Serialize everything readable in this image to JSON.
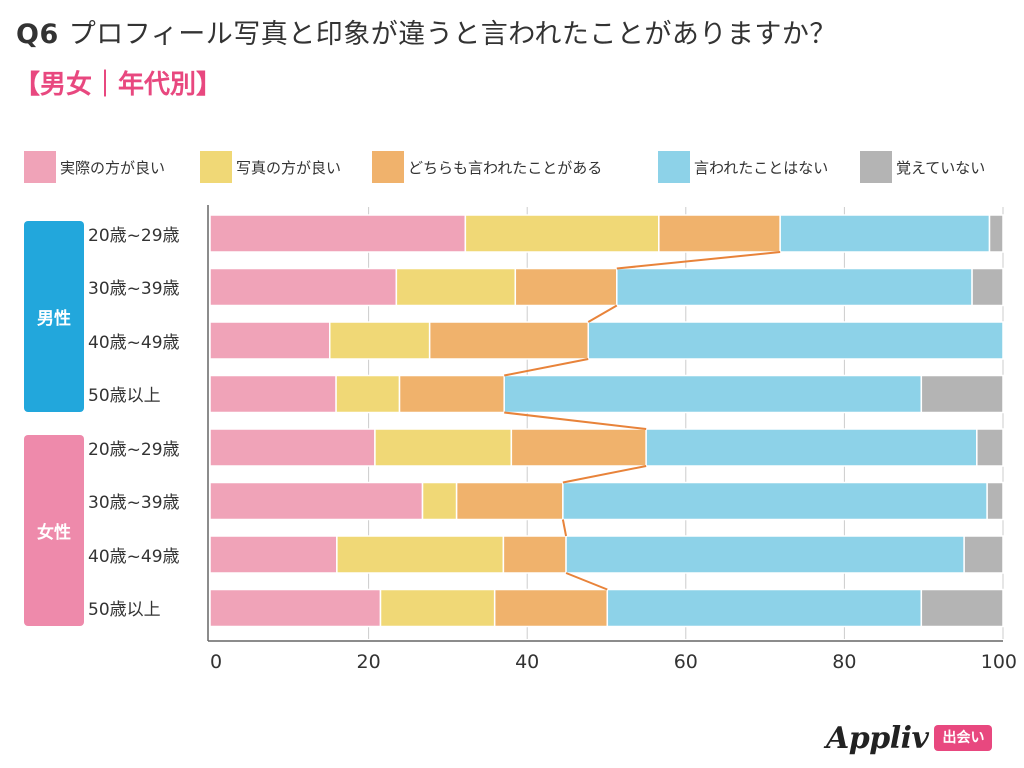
{
  "header": {
    "question_number": "Q6",
    "question_text": "プロフィール写真と印象が違うと言われたことがありますか？",
    "subtitle": "【男女｜年代別】"
  },
  "colors": {
    "accent": "#e8487f",
    "male_badge": "#22a7dc",
    "female_badge": "#ee8aab",
    "connector": "#e8833a",
    "grid": "#cccccc",
    "axis": "#666666"
  },
  "groups": [
    {
      "label": "男性",
      "color": "#22a7dc"
    },
    {
      "label": "女性",
      "color": "#ee8aab"
    }
  ],
  "chart_data": {
    "type": "bar",
    "orientation": "horizontal",
    "stacked": true,
    "categories": [
      "20歳~29歳",
      "30歳~39歳",
      "40歳~49歳",
      "50歳以上",
      "20歳~29歳",
      "30歳~39歳",
      "40歳~49歳",
      "50歳以上"
    ],
    "category_groups": [
      "男性",
      "男性",
      "男性",
      "男性",
      "女性",
      "女性",
      "女性",
      "女性"
    ],
    "series": [
      {
        "name": "実際の方が良い",
        "color": "#f0a3b8",
        "values": [
          32.2,
          23.5,
          15.1,
          15.9,
          20.8,
          26.8,
          16.0,
          21.5
        ]
      },
      {
        "name": "写真の方が良い",
        "color": "#f0d876",
        "values": [
          24.4,
          15.0,
          12.6,
          8.0,
          17.2,
          4.3,
          21.0,
          14.4
        ]
      },
      {
        "name": "どちらも言われたことがある",
        "color": "#f0b26c",
        "values": [
          15.3,
          12.8,
          20.0,
          13.2,
          17.0,
          13.4,
          7.9,
          14.2
        ]
      },
      {
        "name": "言われたことはない",
        "color": "#8dd2e8",
        "values": [
          26.4,
          44.8,
          52.3,
          52.6,
          41.7,
          53.5,
          50.2,
          39.6
        ]
      },
      {
        "name": "覚えていない",
        "color": "#b4b4b4",
        "values": [
          1.7,
          3.9,
          0.0,
          10.3,
          3.3,
          2.0,
          4.9,
          10.3
        ]
      }
    ],
    "connector_series": "どちらも言われたことがある",
    "xlim": [
      0,
      100
    ],
    "xticks": [
      "0",
      "20",
      "40",
      "60",
      "80",
      "100"
    ],
    "grid": true,
    "legend_position": "top"
  },
  "branding": {
    "logo_text": "Appliv",
    "tag_text": "出会い"
  }
}
